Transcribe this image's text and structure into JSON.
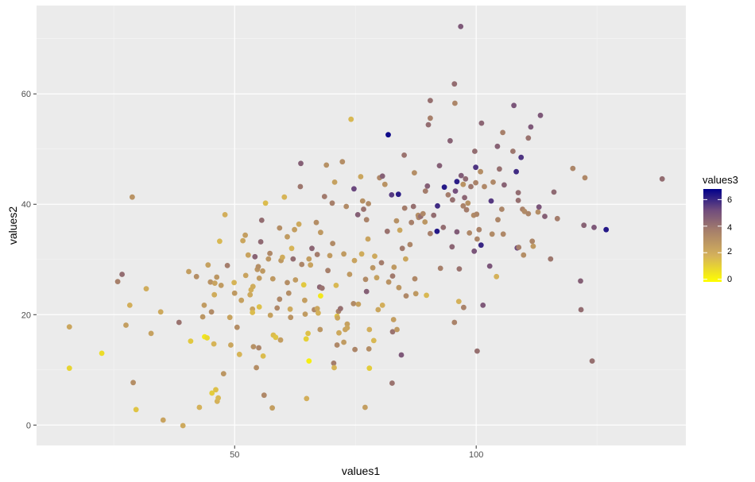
{
  "chart_data": {
    "type": "scatter",
    "title": "",
    "xlabel": "values1",
    "ylabel": "values2",
    "xlim": [
      9.0,
      143.4
    ],
    "ylim": [
      -3.7,
      76.0
    ],
    "x_ticks": [
      50,
      100
    ],
    "x_tick_labels": [
      "50",
      "100"
    ],
    "y_ticks": [
      0,
      20,
      40,
      60
    ],
    "y_tick_labels": [
      "0",
      "20",
      "40",
      "60"
    ],
    "grid": true,
    "legend": {
      "title": "values3",
      "position": "right",
      "type": "colorbar",
      "ticks": [
        0,
        2,
        4,
        6
      ],
      "tick_labels": [
        "0",
        "2",
        "4",
        "6"
      ],
      "range": [
        -0.2,
        6.8
      ],
      "low_color": "#FFFF00",
      "mid_color": "#A67F6B",
      "high_color": "#00008B"
    },
    "colors": {
      "panel_background": "#EBEBEB",
      "grid_major": "#FFFFFF",
      "grid_minor": "#F5F5F5",
      "page_background": "#FFFFFF"
    },
    "points": [
      [
        15.8,
        17.8,
        2.2
      ],
      [
        15.8,
        10.3,
        0.9
      ],
      [
        22.5,
        13.0,
        0.7
      ],
      [
        25.8,
        26.0,
        3.6
      ],
      [
        26.7,
        27.3,
        4.2
      ],
      [
        27.5,
        18.1,
        2.5
      ],
      [
        28.3,
        21.7,
        1.9
      ],
      [
        28.8,
        41.3,
        2.9
      ],
      [
        29.0,
        7.7,
        3.1
      ],
      [
        29.6,
        2.8,
        1.3
      ],
      [
        31.7,
        24.7,
        2.0
      ],
      [
        32.7,
        16.6,
        2.4
      ],
      [
        34.7,
        20.5,
        2.1
      ],
      [
        35.2,
        0.9,
        2.3
      ],
      [
        38.5,
        18.6,
        4.0
      ],
      [
        39.3,
        -0.1,
        2.1
      ],
      [
        40.5,
        27.8,
        2.5
      ],
      [
        40.9,
        15.2,
        1.2
      ],
      [
        42.1,
        26.9,
        3.1
      ],
      [
        42.7,
        3.2,
        1.8
      ],
      [
        43.4,
        19.6,
        2.8
      ],
      [
        43.7,
        21.7,
        2.6
      ],
      [
        43.8,
        16.0,
        0.4
      ],
      [
        44.3,
        15.8,
        0.8
      ],
      [
        44.5,
        29.0,
        2.4
      ],
      [
        45.0,
        25.9,
        2.9
      ],
      [
        45.2,
        20.5,
        3.2
      ],
      [
        45.3,
        5.8,
        1.1
      ],
      [
        45.7,
        14.7,
        1.7
      ],
      [
        45.8,
        23.6,
        2.0
      ],
      [
        45.9,
        25.7,
        2.3
      ],
      [
        46.3,
        26.8,
        2.8
      ],
      [
        46.1,
        6.4,
        1.4
      ],
      [
        46.4,
        4.3,
        1.8
      ],
      [
        46.6,
        4.9,
        1.6
      ],
      [
        46.9,
        33.3,
        1.6
      ],
      [
        47.2,
        25.3,
        2.6
      ],
      [
        47.7,
        9.3,
        2.8
      ],
      [
        48.0,
        38.1,
        1.9
      ],
      [
        48.5,
        28.9,
        3.7
      ],
      [
        49.0,
        19.5,
        2.3
      ],
      [
        49.2,
        14.5,
        2.2
      ],
      [
        49.9,
        25.8,
        1.7
      ],
      [
        50.0,
        23.9,
        2.7
      ],
      [
        50.5,
        17.7,
        3.1
      ],
      [
        51.0,
        12.8,
        1.7
      ],
      [
        51.4,
        22.6,
        2.4
      ],
      [
        51.7,
        33.4,
        2.2
      ],
      [
        52.2,
        34.4,
        2.5
      ],
      [
        52.3,
        27.1,
        2.3
      ],
      [
        52.8,
        30.8,
        2.3
      ],
      [
        53.2,
        23.6,
        2.1
      ],
      [
        53.4,
        24.5,
        1.9
      ],
      [
        53.7,
        21.0,
        2.3
      ],
      [
        53.7,
        20.4,
        1.5
      ],
      [
        53.8,
        25.1,
        2.0
      ],
      [
        53.9,
        14.2,
        3.0
      ],
      [
        54.2,
        30.5,
        4.5
      ],
      [
        54.5,
        10.4,
        3.1
      ],
      [
        54.7,
        28.2,
        2.8
      ],
      [
        54.9,
        28.7,
        3.1
      ],
      [
        55.0,
        14.0,
        3.4
      ],
      [
        55.1,
        21.4,
        1.4
      ],
      [
        55.1,
        26.6,
        2.6
      ],
      [
        55.4,
        33.2,
        4.3
      ],
      [
        55.6,
        37.1,
        4.2
      ],
      [
        55.8,
        27.9,
        2.7
      ],
      [
        55.9,
        12.5,
        1.5
      ],
      [
        56.1,
        5.4,
        3.3
      ],
      [
        56.4,
        40.2,
        1.5
      ],
      [
        57.0,
        30.1,
        2.8
      ],
      [
        57.3,
        31.1,
        3.3
      ],
      [
        57.4,
        19.9,
        2.4
      ],
      [
        57.8,
        3.1,
        2.5
      ],
      [
        57.9,
        26.5,
        2.7
      ],
      [
        58.0,
        16.3,
        1.5
      ],
      [
        58.5,
        15.9,
        1.3
      ],
      [
        58.8,
        21.2,
        3.3
      ],
      [
        59.3,
        35.7,
        3.1
      ],
      [
        59.3,
        22.8,
        3.3
      ],
      [
        59.5,
        15.4,
        2.5
      ],
      [
        59.6,
        29.8,
        2.7
      ],
      [
        59.9,
        30.4,
        2.0
      ],
      [
        60.3,
        41.3,
        1.7
      ],
      [
        60.9,
        34.1,
        2.6
      ],
      [
        60.9,
        25.8,
        3.1
      ],
      [
        61.2,
        23.9,
        3.1
      ],
      [
        61.5,
        21.0,
        2.1
      ],
      [
        61.6,
        19.5,
        2.9
      ],
      [
        61.8,
        32.0,
        1.7
      ],
      [
        62.1,
        30.1,
        4.2
      ],
      [
        62.4,
        35.4,
        2.5
      ],
      [
        62.6,
        26.3,
        2.6
      ],
      [
        63.3,
        36.4,
        2.1
      ],
      [
        63.6,
        43.2,
        3.9
      ],
      [
        63.7,
        47.4,
        4.6
      ],
      [
        63.9,
        29.1,
        3.4
      ],
      [
        64.3,
        25.4,
        1.2
      ],
      [
        64.5,
        22.6,
        2.5
      ],
      [
        64.6,
        20.1,
        2.6
      ],
      [
        64.8,
        15.6,
        1.0
      ],
      [
        64.9,
        4.8,
        1.9
      ],
      [
        65.2,
        16.6,
        1.4
      ],
      [
        65.4,
        11.6,
        0.2
      ],
      [
        65.4,
        30.1,
        2.5
      ],
      [
        65.7,
        29.0,
        2.3
      ],
      [
        66.0,
        32.0,
        4.4
      ],
      [
        66.5,
        20.9,
        3.3
      ],
      [
        66.9,
        36.7,
        3.1
      ],
      [
        67.1,
        30.9,
        3.7
      ],
      [
        67.1,
        21.1,
        2.2
      ],
      [
        67.3,
        20.3,
        1.8
      ],
      [
        67.6,
        25.0,
        4.4
      ],
      [
        67.7,
        17.3,
        2.8
      ],
      [
        67.8,
        34.9,
        2.7
      ],
      [
        67.8,
        23.4,
        0.4
      ],
      [
        68.1,
        24.8,
        4.0
      ],
      [
        68.6,
        41.4,
        3.8
      ],
      [
        69.0,
        47.1,
        3.0
      ],
      [
        69.3,
        28.0,
        3.6
      ],
      [
        69.7,
        30.7,
        2.6
      ],
      [
        70.2,
        40.2,
        3.6
      ],
      [
        70.3,
        32.9,
        3.2
      ],
      [
        70.5,
        11.2,
        3.7
      ],
      [
        70.6,
        10.4,
        1.7
      ],
      [
        70.7,
        44.0,
        2.4
      ],
      [
        71.0,
        25.3,
        1.6
      ],
      [
        71.2,
        14.5,
        3.3
      ],
      [
        71.2,
        19.7,
        1.3
      ],
      [
        71.3,
        19.4,
        2.2
      ],
      [
        71.5,
        20.6,
        3.5
      ],
      [
        71.6,
        16.7,
        2.1
      ],
      [
        71.9,
        21.1,
        4.1
      ],
      [
        72.3,
        47.7,
        3.1
      ],
      [
        72.6,
        15.0,
        2.6
      ],
      [
        72.6,
        31.0,
        2.6
      ],
      [
        72.9,
        17.3,
        2.3
      ],
      [
        73.1,
        39.6,
        3.2
      ],
      [
        73.3,
        18.3,
        2.4
      ],
      [
        73.3,
        17.6,
        2.2
      ],
      [
        73.8,
        27.3,
        2.7
      ],
      [
        74.1,
        55.4,
        1.6
      ],
      [
        74.6,
        22.0,
        3.2
      ],
      [
        74.7,
        42.8,
        5.3
      ],
      [
        74.8,
        29.8,
        2.3
      ],
      [
        74.9,
        13.7,
        3.4
      ],
      [
        75.5,
        38.1,
        4.6
      ],
      [
        75.6,
        21.9,
        2.4
      ],
      [
        76.1,
        45.0,
        2.2
      ],
      [
        76.3,
        31.0,
        2.0
      ],
      [
        76.5,
        40.6,
        3.0
      ],
      [
        76.7,
        39.1,
        4.0
      ],
      [
        77.0,
        3.2,
        2.5
      ],
      [
        77.1,
        26.4,
        3.2
      ],
      [
        77.3,
        24.2,
        4.6
      ],
      [
        77.3,
        37.2,
        3.5
      ],
      [
        77.6,
        33.7,
        2.3
      ],
      [
        77.7,
        40.1,
        3.2
      ],
      [
        77.8,
        13.8,
        3.1
      ],
      [
        77.9,
        17.3,
        1.9
      ],
      [
        77.9,
        10.3,
        1.1
      ],
      [
        78.6,
        28.5,
        2.8
      ],
      [
        78.8,
        15.3,
        1.6
      ],
      [
        79.0,
        30.6,
        2.1
      ],
      [
        79.4,
        26.7,
        2.4
      ],
      [
        79.7,
        20.9,
        2.2
      ],
      [
        80.0,
        44.8,
        3.3
      ],
      [
        80.4,
        29.4,
        3.7
      ],
      [
        80.6,
        21.7,
        1.9
      ],
      [
        80.6,
        45.1,
        4.6
      ],
      [
        81.1,
        43.6,
        2.9
      ],
      [
        81.6,
        35.1,
        4.0
      ],
      [
        81.9,
        25.9,
        2.9
      ],
      [
        81.8,
        52.6,
        6.6
      ],
      [
        82.5,
        41.7,
        5.6
      ],
      [
        82.6,
        7.6,
        4.0
      ],
      [
        82.7,
        16.9,
        4.0
      ],
      [
        82.7,
        27.0,
        3.8
      ],
      [
        82.9,
        19.1,
        2.5
      ],
      [
        83.0,
        28.6,
        2.7
      ],
      [
        83.5,
        37.0,
        3.0
      ],
      [
        83.6,
        17.3,
        2.7
      ],
      [
        83.9,
        41.8,
        6.2
      ],
      [
        84.0,
        24.9,
        2.8
      ],
      [
        84.2,
        35.3,
        2.2
      ],
      [
        84.5,
        12.7,
        4.8
      ],
      [
        84.7,
        32.0,
        3.8
      ],
      [
        85.1,
        48.9,
        4.0
      ],
      [
        85.2,
        39.3,
        3.7
      ],
      [
        85.4,
        30.1,
        2.2
      ],
      [
        85.5,
        23.4,
        3.3
      ],
      [
        86.3,
        32.7,
        3.4
      ],
      [
        86.6,
        36.7,
        3.6
      ],
      [
        87.0,
        39.6,
        4.1
      ],
      [
        87.2,
        45.7,
        3.1
      ],
      [
        87.3,
        26.5,
        3.3
      ],
      [
        87.5,
        23.8,
        2.7
      ],
      [
        88.0,
        38.0,
        3.1
      ],
      [
        88.1,
        37.6,
        3.3
      ],
      [
        88.5,
        37.8,
        4.1
      ],
      [
        89.0,
        38.3,
        3.3
      ],
      [
        89.4,
        36.8,
        2.8
      ],
      [
        89.5,
        42.4,
        3.7
      ],
      [
        89.7,
        23.5,
        1.6
      ],
      [
        89.9,
        43.3,
        4.6
      ],
      [
        90.1,
        54.4,
        4.2
      ],
      [
        90.5,
        55.6,
        3.6
      ],
      [
        90.5,
        58.8,
        4.1
      ],
      [
        90.5,
        34.7,
        3.6
      ],
      [
        91.2,
        38.0,
        4.2
      ],
      [
        91.9,
        35.1,
        6.3
      ],
      [
        92.0,
        39.7,
        5.9
      ],
      [
        92.4,
        47.0,
        4.6
      ],
      [
        92.6,
        28.4,
        3.6
      ],
      [
        93.2,
        35.8,
        4.2
      ],
      [
        93.4,
        43.1,
        6.3
      ],
      [
        94.2,
        41.7,
        3.7
      ],
      [
        94.6,
        51.5,
        4.5
      ],
      [
        95.0,
        32.3,
        4.4
      ],
      [
        95.1,
        40.8,
        4.1
      ],
      [
        95.5,
        18.6,
        3.5
      ],
      [
        95.5,
        61.8,
        4.2
      ],
      [
        95.6,
        58.3,
        3.4
      ],
      [
        95.7,
        42.4,
        5.1
      ],
      [
        96.0,
        35.0,
        4.7
      ],
      [
        96.0,
        44.1,
        6.2
      ],
      [
        96.4,
        22.4,
        1.8
      ],
      [
        96.5,
        28.3,
        4.0
      ],
      [
        96.8,
        72.2,
        4.8
      ],
      [
        96.9,
        45.2,
        4.7
      ],
      [
        97.3,
        39.7,
        3.5
      ],
      [
        97.3,
        43.6,
        2.9
      ],
      [
        97.4,
        21.3,
        3.5
      ],
      [
        97.6,
        41.2,
        4.4
      ],
      [
        97.8,
        44.6,
        4.3
      ],
      [
        98.0,
        39.0,
        3.7
      ],
      [
        98.3,
        40.2,
        3.0
      ],
      [
        98.6,
        34.8,
        3.3
      ],
      [
        98.9,
        43.2,
        3.9
      ],
      [
        99.5,
        38.0,
        3.2
      ],
      [
        99.6,
        31.5,
        4.9
      ],
      [
        99.7,
        49.6,
        4.2
      ],
      [
        99.9,
        46.7,
        5.7
      ],
      [
        99.9,
        43.9,
        3.5
      ],
      [
        100.1,
        38.2,
        3.4
      ],
      [
        100.2,
        13.4,
        4.1
      ],
      [
        100.2,
        33.7,
        3.4
      ],
      [
        100.6,
        35.4,
        3.5
      ],
      [
        100.9,
        45.9,
        3.1
      ],
      [
        101.0,
        32.6,
        6.0
      ],
      [
        101.1,
        54.7,
        4.4
      ],
      [
        101.4,
        21.7,
        4.8
      ],
      [
        101.7,
        43.2,
        3.3
      ],
      [
        102.8,
        28.8,
        4.9
      ],
      [
        103.1,
        40.6,
        5.6
      ],
      [
        103.3,
        34.6,
        3.2
      ],
      [
        103.5,
        44.0,
        3.3
      ],
      [
        104.2,
        26.9,
        1.8
      ],
      [
        104.4,
        50.5,
        4.5
      ],
      [
        104.5,
        37.2,
        3.4
      ],
      [
        104.8,
        46.4,
        4.1
      ],
      [
        105.3,
        39.1,
        3.4
      ],
      [
        105.5,
        53.0,
        3.6
      ],
      [
        105.6,
        34.6,
        3.3
      ],
      [
        105.8,
        43.5,
        4.5
      ],
      [
        107.6,
        49.6,
        3.9
      ],
      [
        107.8,
        57.9,
        4.9
      ],
      [
        108.3,
        45.9,
        5.9
      ],
      [
        108.5,
        32.1,
        5.2
      ],
      [
        108.7,
        40.7,
        4.1
      ],
      [
        108.7,
        42.1,
        4.2
      ],
      [
        108.8,
        32.2,
        3.6
      ],
      [
        109.3,
        48.5,
        5.7
      ],
      [
        109.6,
        39.1,
        3.5
      ],
      [
        109.8,
        30.8,
        3.1
      ],
      [
        110.0,
        38.7,
        3.2
      ],
      [
        110.8,
        52.0,
        4.0
      ],
      [
        110.8,
        38.3,
        3.4
      ],
      [
        111.3,
        54.0,
        4.8
      ],
      [
        111.6,
        33.3,
        3.4
      ],
      [
        111.8,
        32.4,
        2.7
      ],
      [
        112.8,
        38.6,
        3.1
      ],
      [
        113.0,
        39.5,
        4.9
      ],
      [
        113.3,
        56.1,
        4.8
      ],
      [
        114.2,
        37.8,
        4.6
      ],
      [
        115.4,
        30.1,
        3.9
      ],
      [
        116.1,
        42.2,
        4.3
      ],
      [
        116.8,
        37.4,
        3.7
      ],
      [
        120.0,
        46.5,
        3.4
      ],
      [
        121.6,
        26.1,
        4.6
      ],
      [
        121.7,
        20.9,
        4.2
      ],
      [
        122.3,
        36.2,
        4.5
      ],
      [
        122.5,
        44.8,
        3.3
      ],
      [
        124.0,
        11.6,
        4.1
      ],
      [
        124.4,
        35.8,
        4.8
      ],
      [
        126.9,
        35.4,
        6.3
      ],
      [
        138.5,
        44.6,
        4.2
      ]
    ]
  },
  "axes": {
    "x_title": "values1",
    "y_title": "values2",
    "x_tick_labels": [
      "50",
      "100"
    ],
    "y_tick_labels": [
      "0",
      "20",
      "40",
      "60"
    ]
  },
  "legend": {
    "title": "values3",
    "labels": [
      "6",
      "4",
      "2",
      "0"
    ]
  }
}
